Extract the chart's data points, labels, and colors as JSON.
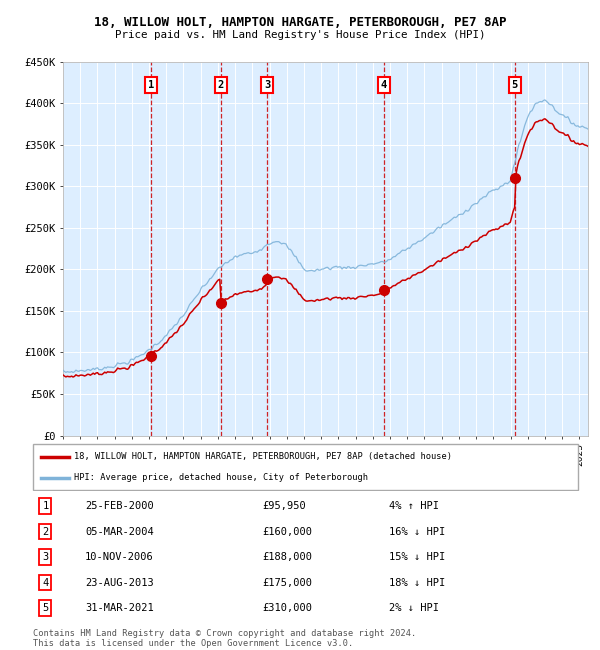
{
  "title1": "18, WILLOW HOLT, HAMPTON HARGATE, PETERBOROUGH, PE7 8AP",
  "title2": "Price paid vs. HM Land Registry's House Price Index (HPI)",
  "legend1": "18, WILLOW HOLT, HAMPTON HARGATE, PETERBOROUGH, PE7 8AP (detached house)",
  "legend2": "HPI: Average price, detached house, City of Peterborough",
  "footer1": "Contains HM Land Registry data © Crown copyright and database right 2024.",
  "footer2": "This data is licensed under the Open Government Licence v3.0.",
  "transactions": [
    {
      "num": 1,
      "date": "25-FEB-2000",
      "price": 95950,
      "hpi_rel": "4% ↑ HPI",
      "decimal_date": 2000.12
    },
    {
      "num": 2,
      "date": "05-MAR-2004",
      "price": 160000,
      "hpi_rel": "16% ↓ HPI",
      "decimal_date": 2004.17
    },
    {
      "num": 3,
      "date": "10-NOV-2006",
      "price": 188000,
      "hpi_rel": "15% ↓ HPI",
      "decimal_date": 2006.86
    },
    {
      "num": 4,
      "date": "23-AUG-2013",
      "price": 175000,
      "hpi_rel": "18% ↓ HPI",
      "decimal_date": 2013.64
    },
    {
      "num": 5,
      "date": "31-MAR-2021",
      "price": 310000,
      "hpi_rel": "2% ↓ HPI",
      "decimal_date": 2021.25
    }
  ],
  "ylim": [
    0,
    450000
  ],
  "xlim_start": 1995.0,
  "xlim_end": 2025.5,
  "bg_color": "#ddeeff",
  "red_color": "#cc0000",
  "blue_color": "#7fb3d9"
}
